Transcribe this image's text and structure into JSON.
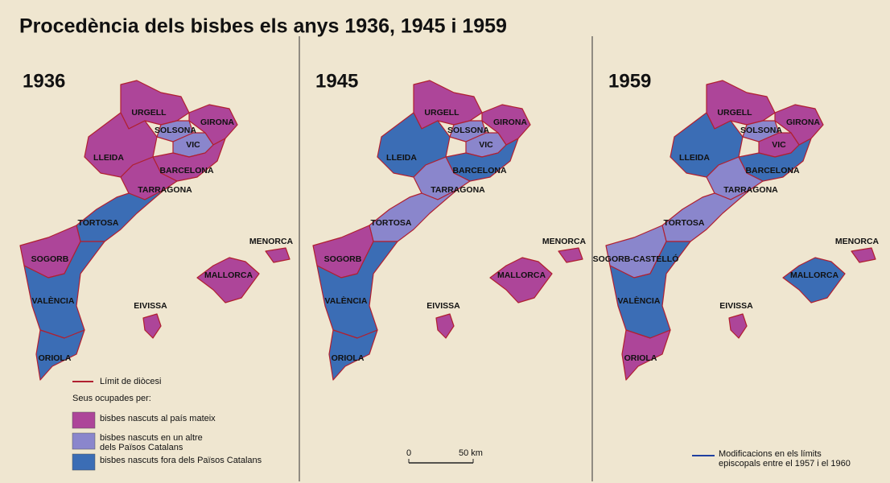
{
  "title": "Procedència dels bisbes els anys 1936, 1945 i 1959",
  "panels": [
    {
      "year": "1936",
      "labels": [
        "URGELL",
        "GIRONA",
        "SOLSONA",
        "VIC",
        "LLEIDA",
        "BARCELONA",
        "TARRAGONA",
        "TORTOSA",
        "SOGORB",
        "VALÈNCIA",
        "ORIOLA",
        "MALLORCA",
        "MENORCA",
        "EIVISSA"
      ]
    },
    {
      "year": "1945",
      "labels": [
        "URGELL",
        "GIRONA",
        "SOLSONA",
        "VIC",
        "LLEIDA",
        "BARCELONA",
        "TARRAGONA",
        "TORTOSA",
        "SOGORB",
        "VALÈNCIA",
        "ORIOLA",
        "MALLORCA",
        "MENORCA",
        "EIVISSA"
      ]
    },
    {
      "year": "1959",
      "labels": [
        "URGELL",
        "GIRONA",
        "SOLSONA",
        "VIC",
        "LLEIDA",
        "BARCELONA",
        "TARRAGONA",
        "TORTOSA",
        "SOGORB-CASTELLÓ",
        "VALÈNCIA",
        "ORIOLA",
        "MALLORCA",
        "MENORCA",
        "EIVISSA"
      ]
    }
  ],
  "legend": {
    "diocese_limit": "Límit de diòcesi",
    "heading": "Seus ocupades per:",
    "items": [
      [
        "bisbes nascuts al país mateix"
      ],
      [
        "bisbes nascuts en un altre",
        "dels Països Catalans"
      ],
      [
        "bisbes nascuts fora dels Països Catalans"
      ]
    ]
  },
  "scale": {
    "start": "0",
    "end": "50 km"
  },
  "note": [
    "Modificacions en els límits",
    "episcopals entre el 1957 i el 1960"
  ]
}
